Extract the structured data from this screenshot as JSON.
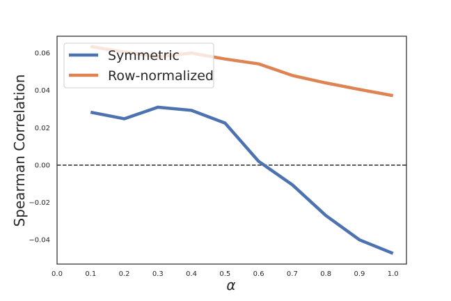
{
  "chart_data": {
    "type": "line",
    "title": "",
    "xlabel": "α",
    "ylabel": "Spearman Correlation",
    "xlim": [
      0.0,
      1.04
    ],
    "ylim": [
      -0.053,
      0.069
    ],
    "xticks": [
      0.0,
      0.1,
      0.2,
      0.3,
      0.4,
      0.5,
      0.6,
      0.7,
      0.8,
      0.9,
      1.0
    ],
    "xtick_labels": [
      "0.0",
      "0.1",
      "0.2",
      "0.3",
      "0.4",
      "0.5",
      "0.6",
      "0.7",
      "0.8",
      "0.9",
      "1.0"
    ],
    "yticks": [
      -0.04,
      -0.02,
      0.0,
      0.02,
      0.04,
      0.06
    ],
    "ytick_labels": [
      "−0.04",
      "−0.02",
      "0.00",
      "0.02",
      "0.04",
      "0.06"
    ],
    "x": [
      0.1,
      0.2,
      0.3,
      0.4,
      0.5,
      0.6,
      0.7,
      0.8,
      0.9,
      1.0
    ],
    "series": [
      {
        "name": "Symmetric",
        "color": "#4c72b0",
        "values": [
          0.0283,
          0.0248,
          0.031,
          0.0293,
          0.0225,
          0.002,
          -0.0105,
          -0.027,
          -0.04,
          -0.0473
        ]
      },
      {
        "name": "Row-normalized",
        "color": "#dd8452",
        "values": [
          0.0635,
          0.0605,
          0.058,
          0.06,
          0.0568,
          0.0542,
          0.048,
          0.044,
          0.0405,
          0.0372
        ]
      }
    ],
    "reference_line": {
      "y": 0.0,
      "style": "dashed",
      "color": "#262626"
    },
    "legend_position": "top-left",
    "grid": false
  }
}
